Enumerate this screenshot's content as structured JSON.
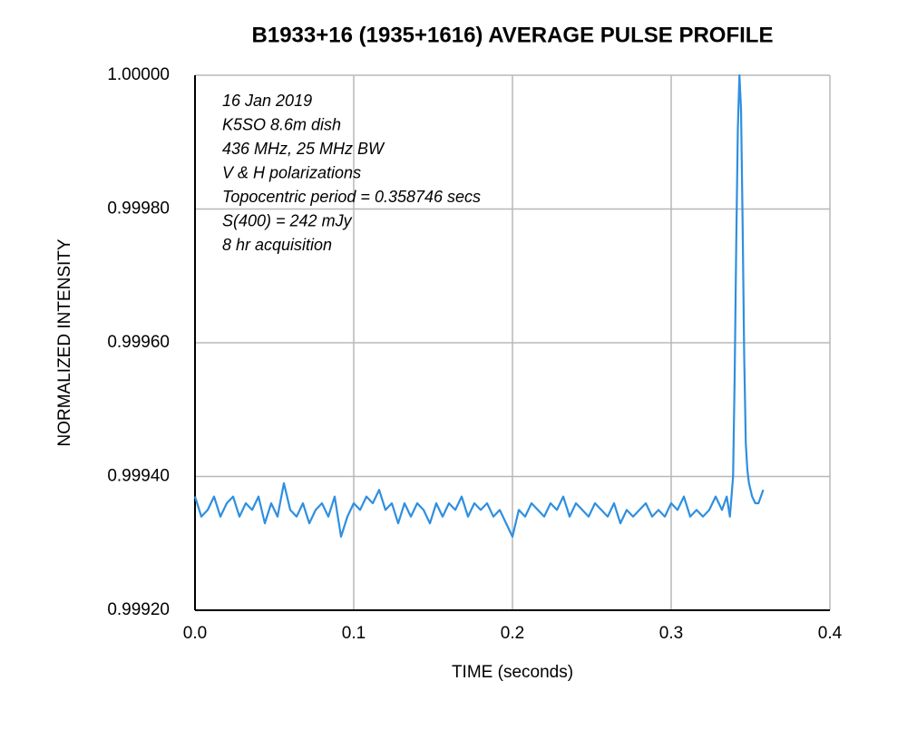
{
  "chart_data": {
    "type": "line",
    "title": "B1933+16  (1935+1616)  AVERAGE PULSE PROFILE",
    "xlabel": "TIME (seconds)",
    "ylabel": "NORMALIZED INTENSITY",
    "annotations": [
      "16 Jan 2019",
      "K5SO 8.6m dish",
      "436 MHz, 25 MHz BW",
      "V & H polarizations",
      "Topocentric period = 0.358746 secs",
      "S(400) = 242 mJy",
      "8 hr acquisition"
    ],
    "x": [
      0,
      0.004,
      0.008,
      0.012,
      0.016,
      0.02,
      0.024,
      0.028,
      0.032,
      0.036,
      0.04,
      0.044,
      0.048,
      0.052,
      0.056,
      0.06,
      0.064,
      0.068,
      0.072,
      0.076,
      0.08,
      0.084,
      0.088,
      0.092,
      0.096,
      0.1,
      0.104,
      0.108,
      0.112,
      0.116,
      0.12,
      0.124,
      0.128,
      0.132,
      0.136,
      0.14,
      0.144,
      0.148,
      0.152,
      0.156,
      0.16,
      0.164,
      0.168,
      0.172,
      0.176,
      0.18,
      0.184,
      0.188,
      0.192,
      0.196,
      0.2,
      0.204,
      0.208,
      0.212,
      0.216,
      0.22,
      0.224,
      0.228,
      0.232,
      0.236,
      0.24,
      0.244,
      0.248,
      0.252,
      0.256,
      0.26,
      0.264,
      0.268,
      0.272,
      0.276,
      0.28,
      0.284,
      0.288,
      0.292,
      0.296,
      0.3,
      0.304,
      0.308,
      0.312,
      0.316,
      0.32,
      0.324,
      0.328,
      0.332,
      0.335,
      0.337,
      0.339,
      0.34,
      0.341,
      0.342,
      0.343,
      0.344,
      0.345,
      0.346,
      0.347,
      0.348,
      0.349,
      0.351,
      0.353,
      0.355,
      0.358
    ],
    "series": [
      {
        "name": "profile",
        "color": "#2f8fe0",
        "values": [
          0.99937,
          0.99934,
          0.99935,
          0.99937,
          0.99934,
          0.99936,
          0.99937,
          0.99934,
          0.99936,
          0.99935,
          0.99937,
          0.99933,
          0.99936,
          0.99934,
          0.99939,
          0.99935,
          0.99934,
          0.99936,
          0.99933,
          0.99935,
          0.99936,
          0.99934,
          0.99937,
          0.99931,
          0.99934,
          0.99936,
          0.99935,
          0.99937,
          0.99936,
          0.99938,
          0.99935,
          0.99936,
          0.99933,
          0.99936,
          0.99934,
          0.99936,
          0.99935,
          0.99933,
          0.99936,
          0.99934,
          0.99936,
          0.99935,
          0.99937,
          0.99934,
          0.99936,
          0.99935,
          0.99936,
          0.99934,
          0.99935,
          0.99933,
          0.99931,
          0.99935,
          0.99934,
          0.99936,
          0.99935,
          0.99934,
          0.99936,
          0.99935,
          0.99937,
          0.99934,
          0.99936,
          0.99935,
          0.99934,
          0.99936,
          0.99935,
          0.99934,
          0.99936,
          0.99933,
          0.99935,
          0.99934,
          0.99935,
          0.99936,
          0.99934,
          0.99935,
          0.99934,
          0.99936,
          0.99935,
          0.99937,
          0.99934,
          0.99935,
          0.99934,
          0.99935,
          0.99937,
          0.99935,
          0.99937,
          0.99934,
          0.9994,
          0.99955,
          0.99975,
          0.99992,
          1.0,
          0.99995,
          0.99978,
          0.99958,
          0.99945,
          0.99941,
          0.99939,
          0.99937,
          0.99936,
          0.99936,
          0.99938
        ]
      }
    ],
    "xlim": [
      0,
      0.4
    ],
    "xticks": [
      {
        "value": 0,
        "label": "0.0"
      },
      0.1,
      0.2,
      0.3,
      0.4
    ],
    "ylim": [
      0.9992,
      1.0
    ],
    "yticks": [
      {
        "value": 0.9992,
        "label": "0.99920"
      },
      {
        "value": 0.9994,
        "label": "0.99940"
      },
      {
        "value": 0.9996,
        "label": "0.99960"
      },
      {
        "value": 0.9998,
        "label": "0.99980"
      },
      {
        "value": 1.0,
        "label": "1.00000"
      }
    ],
    "grid": true
  }
}
